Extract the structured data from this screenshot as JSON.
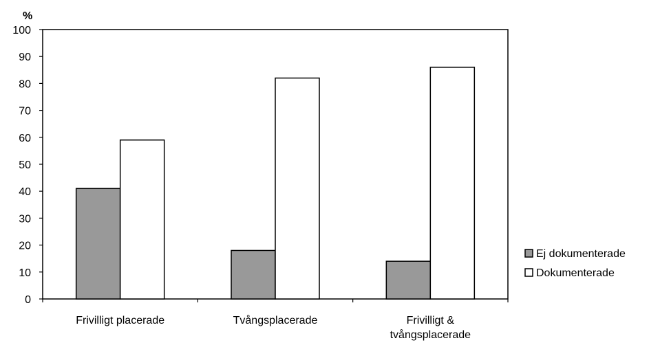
{
  "chart_data": {
    "type": "bar",
    "title": "",
    "xlabel": "",
    "ylabel": "%",
    "ylim": [
      0,
      100
    ],
    "yticks": [
      0,
      10,
      20,
      30,
      40,
      50,
      60,
      70,
      80,
      90,
      100
    ],
    "grid": false,
    "legend_position": "right",
    "categories": [
      [
        "Frivilligt placerade"
      ],
      [
        "Tvångsplacerade"
      ],
      [
        "Frivilligt &",
        "tvångsplacerade"
      ]
    ],
    "series": [
      {
        "name": "Ej dokumenterade",
        "values": [
          41,
          18,
          14
        ],
        "color": "#999999"
      },
      {
        "name": "Dokumenterade",
        "values": [
          59,
          82,
          86
        ],
        "color": "#ffffff"
      }
    ]
  }
}
